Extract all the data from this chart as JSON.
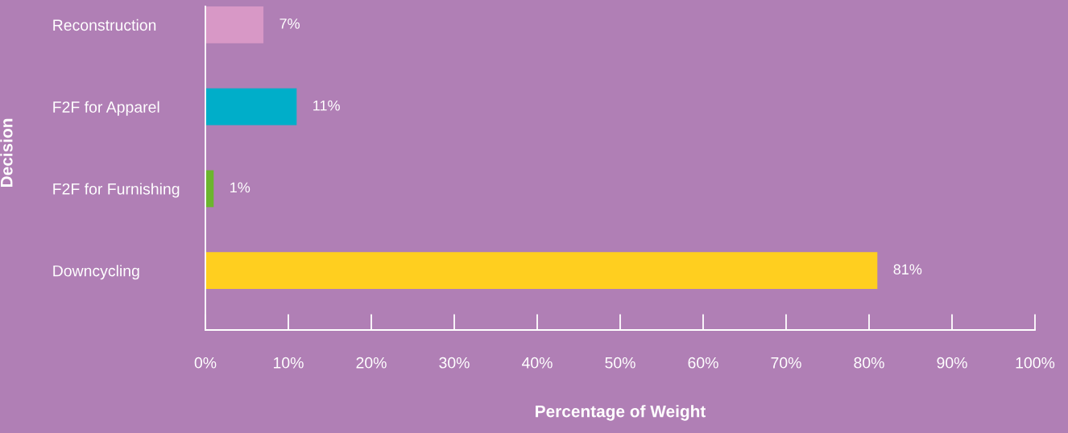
{
  "chart_data": {
    "type": "bar",
    "orientation": "horizontal",
    "xlabel": "Percentage of Weight",
    "ylabel": "Decision",
    "categories": [
      "Reconstruction",
      "F2F for Apparel",
      "F2F for Furnishing",
      "Downcycling"
    ],
    "values": [
      7,
      11,
      1,
      81
    ],
    "colors": [
      "#d898c6",
      "#00aec9",
      "#6cb52e",
      "#ffcf1f"
    ],
    "value_labels": [
      "7%",
      "11%",
      "1%",
      "81%"
    ],
    "xlim": [
      0,
      100
    ],
    "xticks": [
      {
        "value": 0,
        "label": "0%"
      },
      {
        "value": 10,
        "label": "10%"
      },
      {
        "value": 20,
        "label": "20%"
      },
      {
        "value": 30,
        "label": "30%"
      },
      {
        "value": 40,
        "label": "40%"
      },
      {
        "value": 50,
        "label": "50%"
      },
      {
        "value": 60,
        "label": "60%"
      },
      {
        "value": 70,
        "label": "70%"
      },
      {
        "value": 80,
        "label": "80%"
      },
      {
        "value": 90,
        "label": "90%"
      },
      {
        "value": 100,
        "label": "100%"
      }
    ],
    "grid": false,
    "legend": false
  }
}
